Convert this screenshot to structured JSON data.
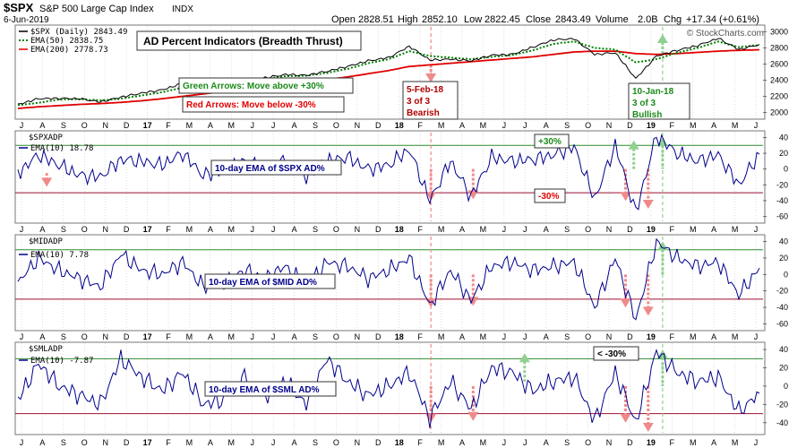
{
  "header": {
    "symbol": "$SPX",
    "name": "S&P 500 Large Cap Index",
    "exchange": "INDX",
    "date": "6-Jun-2019",
    "open_label": "Open",
    "open": "2828.51",
    "high_label": "High",
    "high": "2852.10",
    "low_label": "Low",
    "low": "2822.45",
    "close_label": "Close",
    "close": "2843.49",
    "volume_label": "Volume",
    "volume": "2.0B",
    "chg_label": "Chg",
    "chg": "+17.34 (+0.61%)",
    "watermark": "© StockCharts.com"
  },
  "colors": {
    "background": "#ffffff",
    "panel_fill": "#ffffff",
    "price": "#000000",
    "ema50": "#008000",
    "ema200": "#e00000",
    "breadth": "#00008b",
    "green_line": "#2e8b2e",
    "red_line": "#9b1030",
    "green_arrow": "#90d090",
    "red_arrow": "#f08a8a",
    "grid": "#c8c8c8"
  },
  "x_axis": {
    "labels": [
      "J",
      "A",
      "S",
      "O",
      "N",
      "D",
      "17",
      "F",
      "M",
      "A",
      "M",
      "J",
      "J",
      "A",
      "S",
      "O",
      "N",
      "D",
      "18",
      "F",
      "M",
      "A",
      "M",
      "J",
      "J",
      "A",
      "S",
      "O",
      "N",
      "D",
      "19",
      "F",
      "M",
      "A",
      "M",
      "J"
    ],
    "bold_labels": [
      "17",
      "18",
      "19"
    ]
  },
  "panels": {
    "price": {
      "legend": [
        {
          "text": "$SPX (Daily) 2843.49",
          "color_key": "price"
        },
        {
          "text": "EMA(50) 2838.75",
          "color_key": "ema50"
        },
        {
          "text": "EMA(200) 2778.73",
          "color_key": "ema200"
        }
      ],
      "title_box": "AD Percent Indicators (Breadth Thrust)",
      "green_note": "Green Arrows: Move above +30%",
      "red_note": "Red Arrows: Move below -30%",
      "bearish_note": [
        "5-Feb-18",
        "3 of 3",
        "Bearish"
      ],
      "bullish_note": [
        "10-Jan-18",
        "3 of 3",
        "Bullish"
      ]
    },
    "spx": {
      "symbol": "$SPXADP",
      "ema_label": "EMA(10) 18.78",
      "caption": "10-day EMA of $SPX AD%",
      "plus_note": "+30%",
      "minus_note": "-30%"
    },
    "mid": {
      "symbol": "$MIDADP",
      "ema_label": "EMA(10) 7.78",
      "caption": "10-day EMA of $MID AD%"
    },
    "sml": {
      "symbol": "$SMLADP",
      "ema_label": "EMA(10) -7.87",
      "caption": "10-day EMA of $SML AD%",
      "lt_note": "< -30%"
    }
  },
  "chart_data": [
    {
      "type": "line",
      "title": "$SPX (Daily)",
      "x": [
        "2016-06",
        "2016-07",
        "2016-08",
        "2016-09",
        "2016-10",
        "2016-11",
        "2016-12",
        "2017-01",
        "2017-02",
        "2017-03",
        "2017-04",
        "2017-05",
        "2017-06",
        "2017-07",
        "2017-08",
        "2017-09",
        "2017-10",
        "2017-11",
        "2017-12",
        "2018-01",
        "2018-02",
        "2018-03",
        "2018-04",
        "2018-05",
        "2018-06",
        "2018-07",
        "2018-08",
        "2018-09",
        "2018-10",
        "2018-11",
        "2018-12",
        "2019-01",
        "2019-02",
        "2019-03",
        "2019-04",
        "2019-05",
        "2019-06"
      ],
      "series": [
        {
          "name": "$SPX (Daily)",
          "values": [
            2100,
            2170,
            2175,
            2170,
            2130,
            2190,
            2240,
            2280,
            2360,
            2370,
            2380,
            2410,
            2430,
            2470,
            2460,
            2510,
            2570,
            2640,
            2680,
            2820,
            2650,
            2660,
            2640,
            2710,
            2720,
            2810,
            2900,
            2915,
            2720,
            2740,
            2420,
            2700,
            2770,
            2830,
            2920,
            2780,
            2843
          ]
        },
        {
          "name": "EMA(50)",
          "values": [
            2090,
            2120,
            2160,
            2165,
            2150,
            2170,
            2210,
            2250,
            2310,
            2350,
            2370,
            2395,
            2415,
            2450,
            2455,
            2490,
            2540,
            2610,
            2660,
            2760,
            2700,
            2680,
            2660,
            2690,
            2710,
            2770,
            2850,
            2880,
            2800,
            2780,
            2620,
            2660,
            2740,
            2800,
            2880,
            2810,
            2838
          ]
        },
        {
          "name": "EMA(200)",
          "values": [
            2050,
            2070,
            2085,
            2100,
            2110,
            2125,
            2145,
            2170,
            2200,
            2230,
            2260,
            2290,
            2320,
            2350,
            2380,
            2410,
            2440,
            2480,
            2520,
            2570,
            2590,
            2610,
            2630,
            2650,
            2670,
            2690,
            2720,
            2750,
            2760,
            2760,
            2730,
            2720,
            2730,
            2745,
            2760,
            2770,
            2778
          ]
        }
      ],
      "ylim": [
        1950,
        3050
      ],
      "yticks": [
        2000,
        2200,
        2400,
        2600,
        2800,
        3000
      ]
    },
    {
      "type": "line",
      "title": "$SPXADP EMA(10)",
      "x": [
        "2016-06",
        "2016-07",
        "2016-08",
        "2016-09",
        "2016-10",
        "2016-11",
        "2016-12",
        "2017-01",
        "2017-02",
        "2017-03",
        "2017-04",
        "2017-05",
        "2017-06",
        "2017-07",
        "2017-08",
        "2017-09",
        "2017-10",
        "2017-11",
        "2017-12",
        "2018-01",
        "2018-02",
        "2018-03",
        "2018-04",
        "2018-05",
        "2018-06",
        "2018-07",
        "2018-08",
        "2018-09",
        "2018-10",
        "2018-11",
        "2018-12",
        "2019-01",
        "2019-02",
        "2019-03",
        "2019-04",
        "2019-05",
        "2019-06"
      ],
      "series": [
        {
          "name": "EMA(10)",
          "values": [
            -5,
            18,
            5,
            -8,
            -10,
            12,
            10,
            5,
            20,
            -8,
            -2,
            10,
            0,
            12,
            -10,
            10,
            15,
            0,
            5,
            25,
            -40,
            10,
            -35,
            15,
            10,
            12,
            18,
            28,
            -38,
            30,
            -55,
            42,
            20,
            10,
            18,
            -20,
            18.78
          ]
        }
      ],
      "reference_lines": [
        30,
        -30
      ],
      "ylim": [
        -65,
        45
      ],
      "yticks": [
        40,
        20,
        0,
        -20,
        -40,
        -60
      ]
    },
    {
      "type": "line",
      "title": "$MIDADP EMA(10)",
      "x": [
        "2016-06",
        "2016-07",
        "2016-08",
        "2016-09",
        "2016-10",
        "2016-11",
        "2016-12",
        "2017-01",
        "2017-02",
        "2017-03",
        "2017-04",
        "2017-05",
        "2017-06",
        "2017-07",
        "2017-08",
        "2017-09",
        "2017-10",
        "2017-11",
        "2017-12",
        "2018-01",
        "2018-02",
        "2018-03",
        "2018-04",
        "2018-05",
        "2018-06",
        "2018-07",
        "2018-08",
        "2018-09",
        "2018-10",
        "2018-11",
        "2018-12",
        "2019-01",
        "2019-02",
        "2019-03",
        "2019-04",
        "2019-05",
        "2019-06"
      ],
      "series": [
        {
          "name": "EMA(10)",
          "values": [
            -10,
            20,
            5,
            -5,
            -15,
            25,
            5,
            0,
            15,
            -15,
            -10,
            5,
            -5,
            10,
            -15,
            15,
            10,
            -5,
            5,
            20,
            -38,
            5,
            -32,
            10,
            15,
            5,
            10,
            15,
            -40,
            20,
            -55,
            40,
            20,
            10,
            15,
            -25,
            7.78
          ]
        }
      ],
      "reference_lines": [
        30,
        -30
      ],
      "ylim": [
        -65,
        45
      ],
      "yticks": [
        40,
        20,
        0,
        -20,
        -40,
        -60
      ]
    },
    {
      "type": "line",
      "title": "$SMLADP EMA(10)",
      "x": [
        "2016-06",
        "2016-07",
        "2016-08",
        "2016-09",
        "2016-10",
        "2016-11",
        "2016-12",
        "2017-01",
        "2017-02",
        "2017-03",
        "2017-04",
        "2017-05",
        "2017-06",
        "2017-07",
        "2017-08",
        "2017-09",
        "2017-10",
        "2017-11",
        "2017-12",
        "2018-01",
        "2018-02",
        "2018-03",
        "2018-04",
        "2018-05",
        "2018-06",
        "2018-07",
        "2018-08",
        "2018-09",
        "2018-10",
        "2018-11",
        "2018-12",
        "2019-01",
        "2019-02",
        "2019-03",
        "2019-04",
        "2019-05",
        "2019-06"
      ],
      "series": [
        {
          "name": "EMA(10)",
          "values": [
            -15,
            25,
            0,
            -10,
            -20,
            30,
            10,
            -5,
            15,
            -20,
            -15,
            10,
            -10,
            5,
            -20,
            30,
            5,
            -10,
            0,
            15,
            -35,
            5,
            -25,
            20,
            15,
            -5,
            5,
            10,
            -38,
            15,
            -40,
            38,
            15,
            5,
            10,
            -28,
            -7.87
          ]
        }
      ],
      "reference_lines": [
        30,
        -30
      ],
      "ylim": [
        -50,
        45
      ],
      "yticks": [
        40,
        20,
        0,
        -20,
        -40
      ]
    }
  ]
}
